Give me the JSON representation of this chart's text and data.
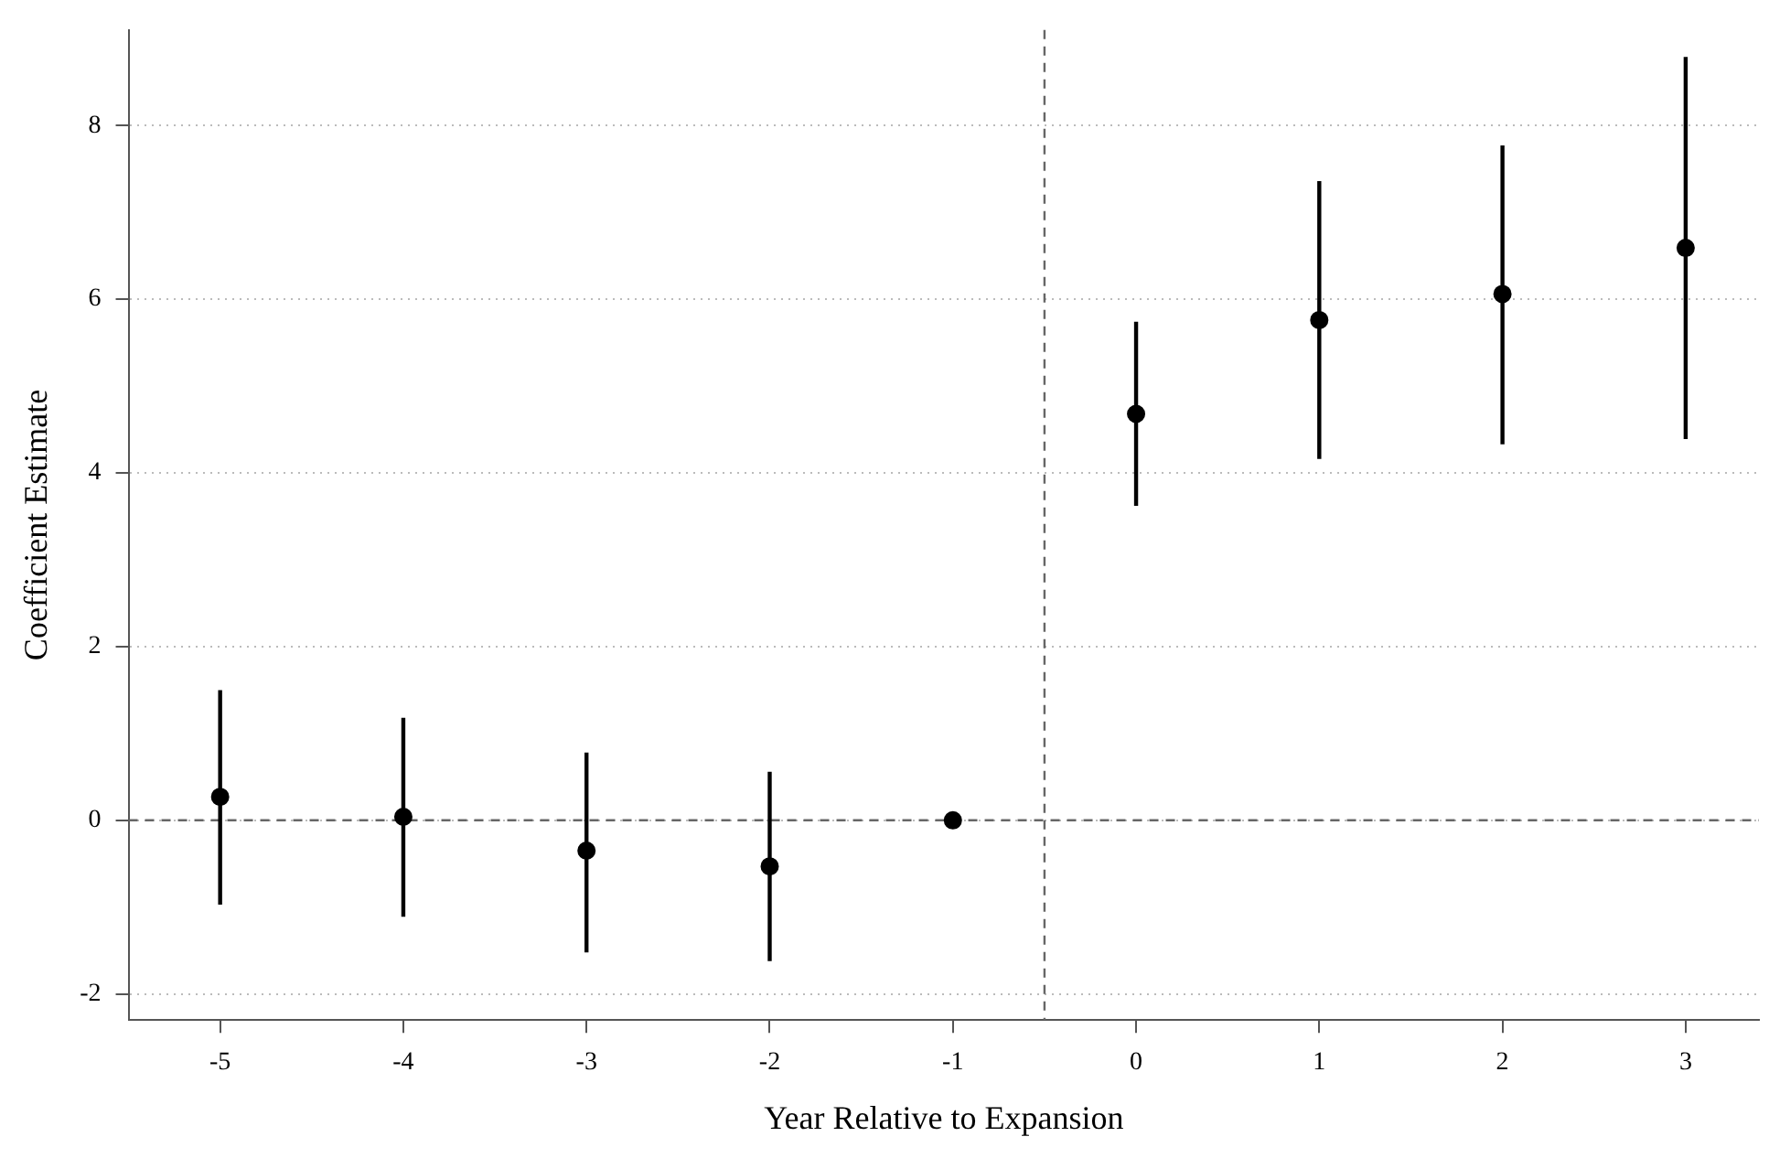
{
  "chart_data": {
    "type": "scatter",
    "xlabel": "Year Relative to Expansion",
    "ylabel": "Coefficient Estimate",
    "x": [
      -5,
      -4,
      -3,
      -2,
      -1,
      0,
      1,
      2,
      3
    ],
    "series": [
      {
        "color": "#000000",
        "values": [
          0.27,
          0.04,
          -0.35,
          -0.53,
          0,
          4.68,
          5.76,
          6.06,
          6.59
        ],
        "errors": [
          [
            -0.97,
            1.5
          ],
          [
            -1.11,
            1.18
          ],
          [
            -1.52,
            0.78
          ],
          [
            -1.62,
            0.56
          ],
          null,
          [
            3.62,
            5.74
          ],
          [
            4.16,
            7.36
          ],
          [
            4.33,
            7.77
          ],
          [
            4.39,
            8.79
          ]
        ]
      }
    ],
    "xlim": [
      -5.5,
      3.4
    ],
    "xticks": [
      -5,
      -4,
      -3,
      -2,
      -1,
      0,
      1,
      2,
      3
    ],
    "ylim": [
      -2.3,
      9.1
    ],
    "yticks": [
      -2,
      0,
      2,
      4,
      6,
      8
    ],
    "ref_lines": [
      {
        "axis": "y",
        "value": 0,
        "color": "#666666",
        "line_style": "dashed"
      },
      {
        "axis": "x",
        "value": -0.5,
        "color": "#666666",
        "line_style": "dashed"
      }
    ],
    "grid": "y",
    "legend": false,
    "marker": "circle"
  }
}
